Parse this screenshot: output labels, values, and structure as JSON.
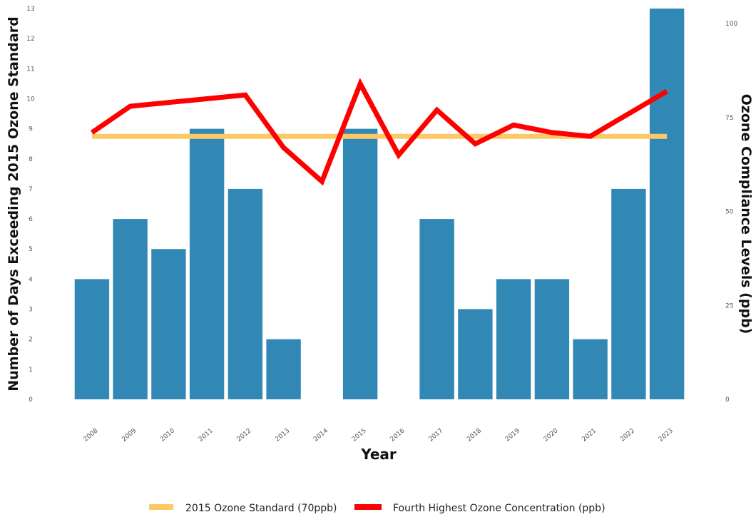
{
  "chart_data": {
    "type": "bar",
    "categories": [
      "2008",
      "2009",
      "2010",
      "2011",
      "2012",
      "2013",
      "2014",
      "2015",
      "2016",
      "2017",
      "2018",
      "2019",
      "2020",
      "2021",
      "2022",
      "2023"
    ],
    "series": [
      {
        "name": "",
        "axis": "left",
        "type": "bar",
        "values": [
          4,
          6,
          5,
          9,
          7,
          2,
          0,
          9,
          0,
          6,
          3,
          4,
          4,
          2,
          7,
          13
        ],
        "color": "#3288b5"
      },
      {
        "name": "2015 Ozone Standard (70ppb)",
        "axis": "right",
        "type": "line",
        "values": [
          70,
          70,
          70,
          70,
          70,
          70,
          70,
          70,
          70,
          70,
          70,
          70,
          70,
          70,
          70,
          70
        ],
        "color": "#fdc966"
      },
      {
        "name": "Fourth Highest Ozone Concentration (ppb)",
        "axis": "right",
        "type": "line",
        "values": [
          71,
          78,
          79,
          80,
          81,
          67,
          58,
          84,
          65,
          77,
          68,
          73,
          71,
          70,
          76,
          82
        ],
        "color": "#ff0000"
      }
    ],
    "xlabel": "Year",
    "ylabel": "Number of Days Exceeding 2015 Ozone Standard",
    "y2label": "Ozone Compliance Levels (ppb)",
    "ylim": [
      0,
      13
    ],
    "y2lim": [
      0,
      104
    ],
    "yticks": [
      0,
      1,
      2,
      3,
      4,
      5,
      6,
      7,
      8,
      9,
      10,
      11,
      12,
      13
    ],
    "y2ticks": [
      0,
      25,
      50,
      75,
      100
    ],
    "grid": false,
    "legend_position": "bottom",
    "legend": [
      {
        "label": "2015 Ozone Standard (70ppb)",
        "color": "#fdc966"
      },
      {
        "label": "Fourth Highest Ozone Concentration (ppb)",
        "color": "#ff0000"
      }
    ]
  }
}
